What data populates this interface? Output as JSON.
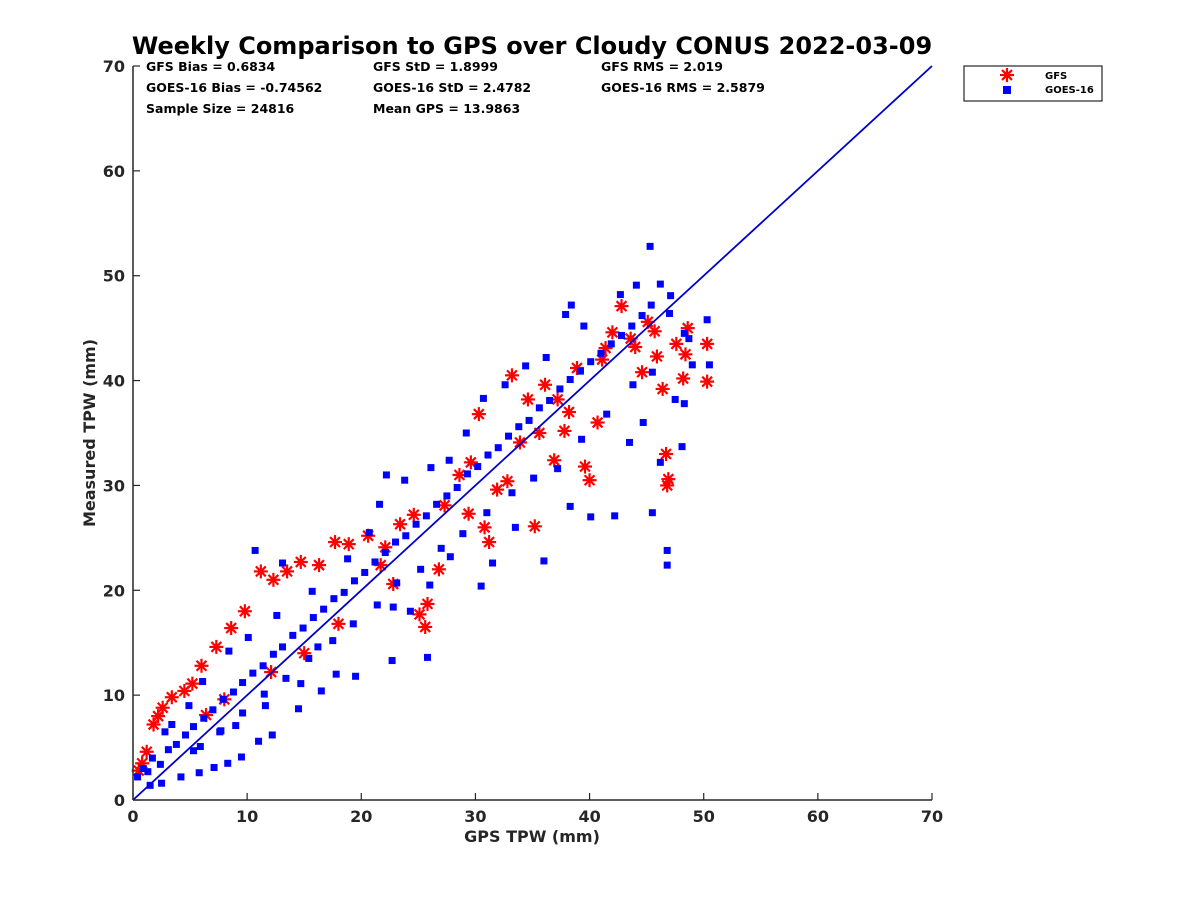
{
  "chart_data": {
    "type": "scatter",
    "title": "Weekly Comparison to GPS over Cloudy CONUS 2022-03-09",
    "xlabel": "GPS TPW (mm)",
    "ylabel": "Measured TPW (mm)",
    "xlim": [
      0,
      70
    ],
    "ylim": [
      0,
      70
    ],
    "xticks": [
      "0",
      "10",
      "20",
      "30",
      "40",
      "50",
      "60",
      "70"
    ],
    "yticks": [
      "0",
      "10",
      "20",
      "30",
      "40",
      "50",
      "60",
      "70"
    ],
    "grid": false,
    "legend_position": "outside-top-right",
    "stats": [
      [
        "GFS Bias = 0.6834",
        "GFS StD = 1.8999",
        "GFS RMS = 2.019"
      ],
      [
        "GOES-16 Bias = -0.74562",
        "GOES-16 StD = 2.4782",
        "GOES-16 RMS = 2.5879"
      ],
      [
        "Sample Size = 24816",
        "Mean GPS = 13.9863",
        ""
      ]
    ],
    "series": [
      {
        "name": "GFS",
        "marker": "asterisk",
        "color": "#ff0000",
        "points": [
          [
            0.5,
            2.8
          ],
          [
            0.8,
            3.5
          ],
          [
            1.2,
            4.6
          ],
          [
            1.8,
            7.2
          ],
          [
            2.2,
            8.0
          ],
          [
            2.6,
            8.8
          ],
          [
            3.4,
            9.8
          ],
          [
            4.5,
            10.4
          ],
          [
            5.2,
            11.1
          ],
          [
            6.0,
            12.8
          ],
          [
            7.3,
            14.6
          ],
          [
            8.6,
            16.4
          ],
          [
            9.8,
            18.0
          ],
          [
            11.2,
            21.8
          ],
          [
            12.3,
            21.0
          ],
          [
            13.5,
            21.8
          ],
          [
            14.7,
            22.7
          ],
          [
            16.3,
            22.4
          ],
          [
            17.7,
            24.6
          ],
          [
            18.9,
            24.4
          ],
          [
            20.6,
            25.2
          ],
          [
            22.1,
            24.1
          ],
          [
            23.4,
            26.3
          ],
          [
            24.6,
            27.2
          ],
          [
            25.1,
            17.7
          ],
          [
            25.8,
            18.7
          ],
          [
            25.6,
            16.5
          ],
          [
            27.3,
            28.1
          ],
          [
            28.6,
            31.0
          ],
          [
            29.6,
            32.2
          ],
          [
            30.8,
            26.0
          ],
          [
            31.2,
            24.6
          ],
          [
            31.9,
            29.6
          ],
          [
            32.8,
            30.4
          ],
          [
            33.2,
            40.5
          ],
          [
            33.9,
            34.1
          ],
          [
            34.6,
            38.2
          ],
          [
            35.6,
            35.0
          ],
          [
            36.1,
            39.6
          ],
          [
            37.2,
            38.2
          ],
          [
            37.8,
            35.2
          ],
          [
            38.9,
            41.2
          ],
          [
            39.6,
            31.8
          ],
          [
            40.0,
            30.5
          ],
          [
            40.7,
            36.0
          ],
          [
            41.4,
            43.1
          ],
          [
            42.0,
            44.6
          ],
          [
            42.8,
            47.1
          ],
          [
            43.6,
            44.0
          ],
          [
            44.6,
            40.8
          ],
          [
            45.1,
            45.6
          ],
          [
            45.9,
            42.3
          ],
          [
            46.4,
            39.2
          ],
          [
            46.7,
            33.0
          ],
          [
            46.8,
            30.0
          ],
          [
            46.9,
            30.6
          ],
          [
            47.6,
            43.5
          ],
          [
            48.4,
            42.5
          ],
          [
            48.6,
            45.0
          ],
          [
            48.2,
            40.2
          ],
          [
            50.3,
            43.5
          ],
          [
            50.3,
            39.9
          ],
          [
            30.3,
            36.8
          ],
          [
            29.4,
            27.3
          ],
          [
            35.2,
            26.1
          ],
          [
            21.7,
            22.4
          ],
          [
            18.0,
            16.8
          ],
          [
            15.0,
            14.0
          ],
          [
            12.1,
            12.2
          ],
          [
            8.0,
            9.6
          ],
          [
            6.4,
            8.1
          ],
          [
            22.8,
            20.6
          ],
          [
            26.8,
            22.0
          ],
          [
            44.0,
            43.2
          ],
          [
            45.7,
            44.7
          ],
          [
            38.2,
            37.0
          ],
          [
            36.9,
            32.4
          ],
          [
            41.1,
            42.0
          ]
        ]
      },
      {
        "name": "GOES-16",
        "marker": "square",
        "color": "#0000ff",
        "points": [
          [
            0.4,
            2.2
          ],
          [
            0.9,
            3.0
          ],
          [
            1.3,
            2.7
          ],
          [
            1.7,
            4.0
          ],
          [
            2.4,
            3.4
          ],
          [
            3.1,
            4.8
          ],
          [
            3.8,
            5.3
          ],
          [
            4.6,
            6.2
          ],
          [
            5.3,
            7.0
          ],
          [
            6.2,
            7.8
          ],
          [
            7.0,
            8.6
          ],
          [
            7.9,
            9.6
          ],
          [
            8.8,
            10.3
          ],
          [
            9.6,
            11.2
          ],
          [
            10.5,
            12.1
          ],
          [
            11.4,
            12.8
          ],
          [
            12.3,
            13.9
          ],
          [
            13.1,
            14.6
          ],
          [
            14.0,
            15.7
          ],
          [
            14.9,
            16.4
          ],
          [
            15.8,
            17.4
          ],
          [
            16.7,
            18.2
          ],
          [
            17.6,
            19.2
          ],
          [
            18.5,
            19.8
          ],
          [
            19.4,
            20.9
          ],
          [
            20.3,
            21.7
          ],
          [
            21.2,
            22.7
          ],
          [
            22.1,
            23.6
          ],
          [
            23.0,
            24.6
          ],
          [
            23.9,
            25.2
          ],
          [
            24.8,
            26.3
          ],
          [
            25.7,
            27.1
          ],
          [
            26.6,
            28.2
          ],
          [
            27.5,
            29.0
          ],
          [
            28.4,
            29.8
          ],
          [
            29.3,
            31.1
          ],
          [
            30.2,
            31.8
          ],
          [
            31.1,
            32.9
          ],
          [
            32.0,
            33.6
          ],
          [
            32.9,
            34.7
          ],
          [
            33.8,
            35.6
          ],
          [
            34.7,
            36.2
          ],
          [
            35.6,
            37.4
          ],
          [
            36.5,
            38.1
          ],
          [
            37.4,
            39.2
          ],
          [
            38.3,
            40.1
          ],
          [
            39.2,
            40.9
          ],
          [
            40.1,
            41.8
          ],
          [
            41.0,
            42.6
          ],
          [
            41.9,
            43.5
          ],
          [
            42.8,
            44.3
          ],
          [
            43.7,
            45.2
          ],
          [
            44.6,
            46.2
          ],
          [
            45.4,
            47.2
          ],
          [
            45.3,
            52.8
          ],
          [
            46.2,
            49.2
          ],
          [
            47.1,
            48.1
          ],
          [
            47.0,
            46.4
          ],
          [
            48.3,
            44.5
          ],
          [
            48.7,
            44.0
          ],
          [
            49.0,
            41.5
          ],
          [
            50.3,
            45.8
          ],
          [
            50.5,
            41.5
          ],
          [
            47.5,
            38.2
          ],
          [
            48.3,
            37.8
          ],
          [
            46.8,
            22.4
          ],
          [
            46.8,
            23.8
          ],
          [
            45.5,
            27.4
          ],
          [
            43.5,
            34.1
          ],
          [
            44.7,
            36.0
          ],
          [
            46.2,
            32.2
          ],
          [
            48.1,
            33.7
          ],
          [
            42.2,
            27.1
          ],
          [
            40.1,
            27.0
          ],
          [
            38.3,
            28.0
          ],
          [
            36.0,
            22.8
          ],
          [
            33.5,
            26.0
          ],
          [
            31.5,
            22.6
          ],
          [
            30.5,
            20.4
          ],
          [
            27.8,
            23.2
          ],
          [
            26.0,
            20.5
          ],
          [
            24.3,
            18.0
          ],
          [
            22.8,
            18.4
          ],
          [
            25.8,
            13.6
          ],
          [
            22.7,
            13.3
          ],
          [
            19.5,
            11.8
          ],
          [
            17.8,
            12.0
          ],
          [
            16.5,
            10.4
          ],
          [
            14.5,
            8.7
          ],
          [
            12.2,
            6.2
          ],
          [
            11.0,
            5.6
          ],
          [
            9.5,
            4.1
          ],
          [
            8.3,
            3.5
          ],
          [
            7.1,
            3.1
          ],
          [
            5.8,
            2.6
          ],
          [
            4.2,
            2.2
          ],
          [
            2.5,
            1.6
          ],
          [
            1.5,
            1.4
          ],
          [
            10.7,
            23.8
          ],
          [
            13.1,
            22.6
          ],
          [
            15.7,
            19.9
          ],
          [
            18.8,
            23.0
          ],
          [
            20.7,
            25.5
          ],
          [
            21.6,
            28.2
          ],
          [
            22.2,
            31.0
          ],
          [
            23.8,
            30.5
          ],
          [
            26.1,
            31.7
          ],
          [
            27.7,
            32.4
          ],
          [
            29.2,
            35.0
          ],
          [
            30.7,
            38.3
          ],
          [
            32.6,
            39.6
          ],
          [
            34.4,
            41.4
          ],
          [
            36.2,
            42.2
          ],
          [
            37.9,
            46.3
          ],
          [
            39.5,
            45.2
          ],
          [
            38.4,
            47.2
          ],
          [
            42.7,
            48.2
          ],
          [
            44.1,
            49.1
          ],
          [
            6.1,
            11.3
          ],
          [
            4.9,
            9.0
          ],
          [
            3.4,
            7.2
          ],
          [
            2.8,
            6.5
          ],
          [
            8.4,
            14.2
          ],
          [
            10.1,
            15.5
          ],
          [
            12.6,
            17.6
          ],
          [
            16.2,
            14.6
          ],
          [
            14.7,
            11.1
          ],
          [
            11.6,
            9.0
          ],
          [
            9.0,
            7.1
          ],
          [
            7.6,
            6.5
          ],
          [
            5.3,
            4.7
          ],
          [
            35.1,
            30.7
          ],
          [
            37.2,
            31.6
          ],
          [
            39.3,
            34.4
          ],
          [
            41.5,
            36.8
          ],
          [
            43.8,
            39.6
          ],
          [
            45.5,
            40.8
          ],
          [
            33.2,
            29.3
          ],
          [
            31.0,
            27.4
          ],
          [
            28.9,
            25.4
          ],
          [
            27.0,
            24.0
          ],
          [
            25.2,
            22.0
          ],
          [
            23.1,
            20.7
          ],
          [
            21.4,
            18.6
          ],
          [
            19.3,
            16.8
          ],
          [
            17.5,
            15.2
          ],
          [
            15.4,
            13.5
          ],
          [
            13.4,
            11.6
          ],
          [
            11.5,
            10.1
          ],
          [
            9.6,
            8.3
          ],
          [
            7.7,
            6.6
          ],
          [
            5.9,
            5.1
          ]
        ]
      }
    ],
    "reference_line": {
      "from": [
        0,
        0
      ],
      "to": [
        70,
        70
      ],
      "color": "#0000cc"
    }
  }
}
